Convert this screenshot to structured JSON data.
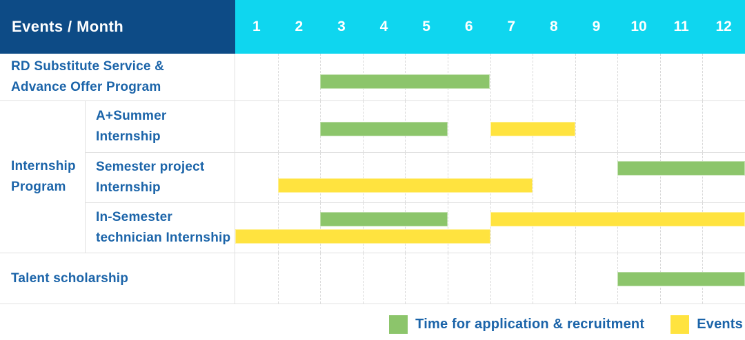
{
  "header": {
    "title": "Events / Month",
    "months": [
      "1",
      "2",
      "3",
      "4",
      "5",
      "6",
      "7",
      "8",
      "9",
      "10",
      "11",
      "12"
    ]
  },
  "colors": {
    "header_bg": "#0d4b86",
    "month_header_bg": "#0fd6ef",
    "header_text": "#ffffff",
    "label_text": "#1b64a9",
    "recruitment_green": "#8cc56b",
    "event_yellow": "#ffe33f",
    "grid_line": "#d8d8d8",
    "row_border": "#e0e0e0"
  },
  "legend": {
    "items": [
      {
        "type": "recruitment",
        "label": "Time for application & recruitment"
      },
      {
        "type": "event",
        "label": "Events"
      }
    ]
  },
  "chart_data": {
    "type": "bar",
    "subtype": "gantt",
    "title": "Events / Month",
    "x_unit": "month",
    "x_range": [
      1,
      12
    ],
    "bar_types": {
      "recruitment": "Time for application & recruitment",
      "event": "Events"
    },
    "rows": [
      {
        "kind": "row",
        "label_lines": [
          "RD Substitute Service &",
          "Advance Offer Program"
        ],
        "bars": [
          {
            "type": "recruitment",
            "start_month": 3,
            "end_month": 6,
            "lane": "center"
          }
        ]
      },
      {
        "kind": "group",
        "label_lines": [
          "Internship",
          "Program"
        ],
        "rows": [
          {
            "label_lines": [
              "A+Summer",
              "Internship"
            ],
            "bars": [
              {
                "type": "recruitment",
                "start_month": 3,
                "end_month": 5,
                "lane": "center"
              },
              {
                "type": "event",
                "start_month": 7,
                "end_month": 8,
                "lane": "center"
              }
            ]
          },
          {
            "label_lines": [
              "Semester project",
              "Internship"
            ],
            "bars": [
              {
                "type": "recruitment",
                "start_month": 10,
                "end_month": 12,
                "lane": "top"
              },
              {
                "type": "event",
                "start_month": 2,
                "end_month": 7,
                "lane": "bottom"
              }
            ]
          },
          {
            "label_lines": [
              "In-Semester",
              "technician Internship"
            ],
            "bars": [
              {
                "type": "recruitment",
                "start_month": 3,
                "end_month": 5,
                "lane": "top"
              },
              {
                "type": "event",
                "start_month": 7,
                "end_month": 12,
                "lane": "top"
              },
              {
                "type": "event",
                "start_month": 1,
                "end_month": 6,
                "lane": "bottom"
              }
            ]
          }
        ]
      },
      {
        "kind": "row",
        "label_lines": [
          "Talent scholarship"
        ],
        "bars": [
          {
            "type": "recruitment",
            "start_month": 10,
            "end_month": 12,
            "lane": "center"
          }
        ]
      }
    ]
  }
}
